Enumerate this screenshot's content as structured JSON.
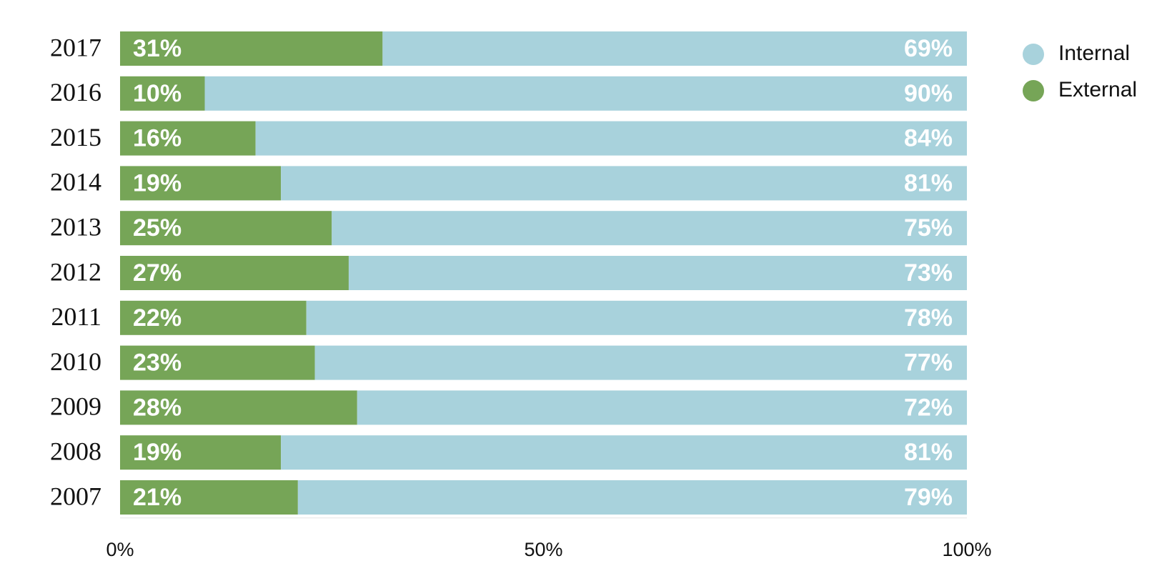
{
  "chart_data": {
    "type": "stacked-bar-horizontal",
    "categories": [
      "2017",
      "2016",
      "2015",
      "2014",
      "2013",
      "2012",
      "2011",
      "2010",
      "2009",
      "2008",
      "2007"
    ],
    "series": [
      {
        "name": "Internal",
        "color": "#a8d2dc",
        "values": [
          69,
          90,
          84,
          81,
          75,
          73,
          78,
          77,
          72,
          81,
          79
        ],
        "value_labels": [
          "69%",
          "90%",
          "84%",
          "81%",
          "75%",
          "73%",
          "78%",
          "77%",
          "72%",
          "81%",
          "79%"
        ]
      },
      {
        "name": "External",
        "color": "#76a557",
        "values": [
          31,
          10,
          16,
          19,
          25,
          27,
          22,
          23,
          28,
          19,
          21
        ],
        "value_labels": [
          "31%",
          "10%",
          "16%",
          "19%",
          "25%",
          "27%",
          "22%",
          "23%",
          "28%",
          "19%",
          "21%"
        ]
      }
    ],
    "xlim": [
      0,
      100
    ],
    "xticks": [
      {
        "value": 0,
        "label": "0%"
      },
      {
        "value": 50,
        "label": "50%"
      },
      {
        "value": 100,
        "label": "100%"
      }
    ],
    "legend": "top-right"
  }
}
